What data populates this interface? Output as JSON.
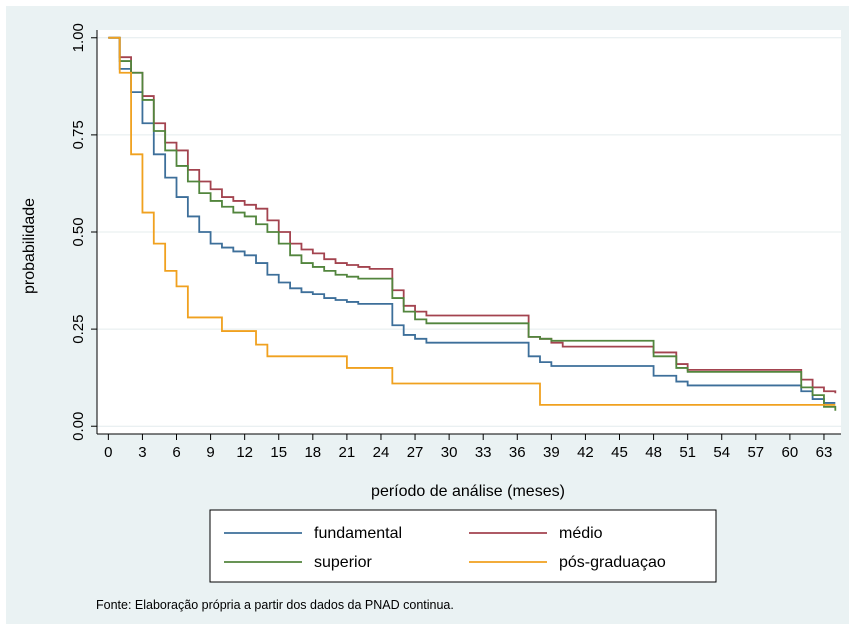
{
  "chart_data": {
    "type": "line",
    "subtype": "step",
    "xlabel": "período de análise (meses)",
    "ylabel": "probabilidade",
    "xlim": [
      -1,
      64.5
    ],
    "ylim": [
      -0.02,
      1.02
    ],
    "x_ticks": [
      0,
      3,
      6,
      9,
      12,
      15,
      18,
      21,
      24,
      27,
      30,
      33,
      36,
      39,
      42,
      45,
      48,
      51,
      54,
      57,
      60,
      63
    ],
    "y_ticks": [
      0.0,
      0.25,
      0.5,
      0.75,
      1.0
    ],
    "y_tick_labels": [
      "0.00",
      "0.25",
      "0.50",
      "0.75",
      "1.00"
    ],
    "grid": "horizontal",
    "legend_position": "bottom",
    "series": [
      {
        "name": "fundamental",
        "color": "#3d6f9a",
        "points": [
          [
            0,
            1.0
          ],
          [
            1,
            0.92
          ],
          [
            2,
            0.86
          ],
          [
            3,
            0.78
          ],
          [
            4,
            0.7
          ],
          [
            5,
            0.64
          ],
          [
            6,
            0.59
          ],
          [
            7,
            0.54
          ],
          [
            8,
            0.5
          ],
          [
            9,
            0.47
          ],
          [
            10,
            0.46
          ],
          [
            11,
            0.45
          ],
          [
            12,
            0.44
          ],
          [
            13,
            0.42
          ],
          [
            14,
            0.39
          ],
          [
            15,
            0.37
          ],
          [
            16,
            0.355
          ],
          [
            17,
            0.345
          ],
          [
            18,
            0.34
          ],
          [
            19,
            0.33
          ],
          [
            20,
            0.325
          ],
          [
            21,
            0.32
          ],
          [
            22,
            0.315
          ],
          [
            25,
            0.26
          ],
          [
            26,
            0.235
          ],
          [
            27,
            0.225
          ],
          [
            28,
            0.215
          ],
          [
            37,
            0.18
          ],
          [
            38,
            0.165
          ],
          [
            39,
            0.155
          ],
          [
            48,
            0.13
          ],
          [
            50,
            0.115
          ],
          [
            51,
            0.105
          ],
          [
            61,
            0.09
          ],
          [
            62,
            0.07
          ],
          [
            63,
            0.06
          ],
          [
            64,
            0.06
          ]
        ]
      },
      {
        "name": "médio",
        "color": "#a3434f",
        "points": [
          [
            0,
            1.0
          ],
          [
            1,
            0.95
          ],
          [
            2,
            0.91
          ],
          [
            3,
            0.85
          ],
          [
            4,
            0.78
          ],
          [
            5,
            0.73
          ],
          [
            6,
            0.71
          ],
          [
            7,
            0.66
          ],
          [
            8,
            0.63
          ],
          [
            9,
            0.61
          ],
          [
            10,
            0.59
          ],
          [
            11,
            0.58
          ],
          [
            12,
            0.57
          ],
          [
            13,
            0.56
          ],
          [
            14,
            0.53
          ],
          [
            15,
            0.5
          ],
          [
            16,
            0.47
          ],
          [
            17,
            0.455
          ],
          [
            18,
            0.445
          ],
          [
            19,
            0.43
          ],
          [
            20,
            0.42
          ],
          [
            21,
            0.415
          ],
          [
            22,
            0.41
          ],
          [
            23,
            0.405
          ],
          [
            25,
            0.35
          ],
          [
            26,
            0.31
          ],
          [
            27,
            0.295
          ],
          [
            28,
            0.285
          ],
          [
            37,
            0.23
          ],
          [
            38,
            0.225
          ],
          [
            39,
            0.215
          ],
          [
            40,
            0.205
          ],
          [
            48,
            0.19
          ],
          [
            50,
            0.16
          ],
          [
            51,
            0.145
          ],
          [
            61,
            0.12
          ],
          [
            62,
            0.1
          ],
          [
            63,
            0.09
          ],
          [
            64,
            0.085
          ]
        ]
      },
      {
        "name": "superior",
        "color": "#52853d",
        "points": [
          [
            0,
            1.0
          ],
          [
            1,
            0.94
          ],
          [
            2,
            0.91
          ],
          [
            3,
            0.84
          ],
          [
            4,
            0.76
          ],
          [
            5,
            0.71
          ],
          [
            6,
            0.67
          ],
          [
            7,
            0.63
          ],
          [
            8,
            0.6
          ],
          [
            9,
            0.58
          ],
          [
            10,
            0.565
          ],
          [
            11,
            0.55
          ],
          [
            12,
            0.54
          ],
          [
            13,
            0.52
          ],
          [
            14,
            0.5
          ],
          [
            15,
            0.47
          ],
          [
            16,
            0.44
          ],
          [
            17,
            0.42
          ],
          [
            18,
            0.41
          ],
          [
            19,
            0.4
          ],
          [
            20,
            0.39
          ],
          [
            21,
            0.385
          ],
          [
            22,
            0.38
          ],
          [
            25,
            0.33
          ],
          [
            26,
            0.295
          ],
          [
            27,
            0.275
          ],
          [
            28,
            0.265
          ],
          [
            37,
            0.23
          ],
          [
            38,
            0.225
          ],
          [
            39,
            0.22
          ],
          [
            48,
            0.18
          ],
          [
            50,
            0.15
          ],
          [
            51,
            0.14
          ],
          [
            61,
            0.1
          ],
          [
            62,
            0.08
          ],
          [
            63,
            0.05
          ],
          [
            64,
            0.04
          ]
        ]
      },
      {
        "name": "pós-graduaçao",
        "color": "#f0a11f",
        "points": [
          [
            0,
            1.0
          ],
          [
            1,
            0.91
          ],
          [
            2,
            0.7
          ],
          [
            3,
            0.55
          ],
          [
            4,
            0.47
          ],
          [
            5,
            0.4
          ],
          [
            6,
            0.36
          ],
          [
            7,
            0.28
          ],
          [
            10,
            0.245
          ],
          [
            13,
            0.21
          ],
          [
            14,
            0.18
          ],
          [
            21,
            0.15
          ],
          [
            25,
            0.11
          ],
          [
            38,
            0.055
          ],
          [
            64,
            0.055
          ]
        ]
      }
    ],
    "legend": [
      "fundamental",
      "médio",
      "superior",
      "pós-graduaçao"
    ]
  },
  "source_note": "Fonte: Elaboração própria a partir dos dados da PNAD continua."
}
